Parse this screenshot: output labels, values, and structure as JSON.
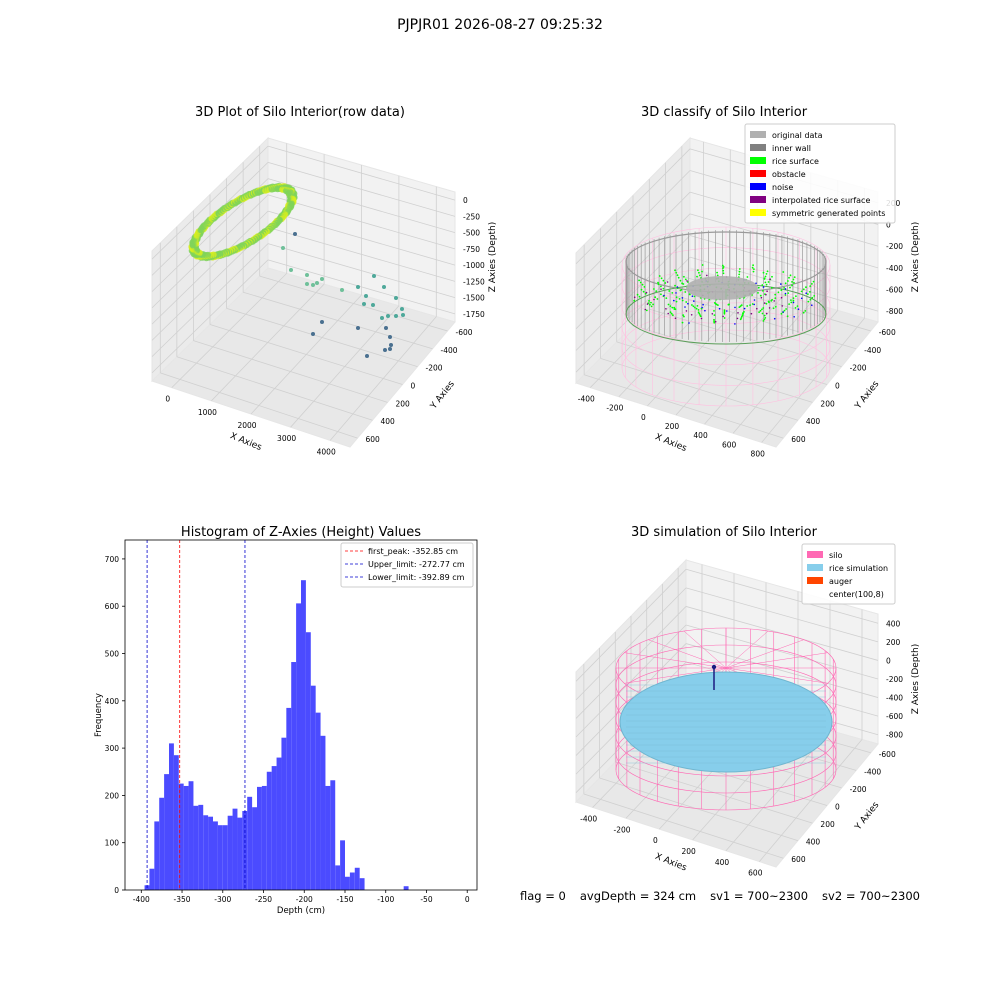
{
  "suptitle": "PJPJR01 2026-08-27 09:25:32",
  "footer": {
    "flag": "flag = 0",
    "avg": "avgDepth = 324 cm",
    "sv1": "sv1 = 700~2300",
    "sv2": "sv2 = 700~2300"
  },
  "colors": {
    "hist_bar": "#4b4bff",
    "peak_line": "#ff0000",
    "limit_line": "#0000cc",
    "silo": "#ff69b4",
    "rice": "#87ceeb",
    "auger": "#ff4500",
    "ring_green": "#7fd35a",
    "ring_yellow": "#d8ef1e",
    "teal": "#4ea89a",
    "grey": "#b0b0b0",
    "rice_surface": "#00ff00"
  },
  "chart_data": [
    {
      "type": "scatter",
      "title": "3D Plot of Silo Interior(row data)",
      "xlabel": "X Axies",
      "ylabel": "Y Axies",
      "zlabel": "Z Axies (Depth)",
      "x_ticks": [
        "0",
        "1000",
        "2000",
        "3000",
        "4000"
      ],
      "y_ticks": [
        "-600",
        "-400",
        "-200",
        "0",
        "200",
        "400",
        "600"
      ],
      "z_ticks": [
        "0",
        "-250",
        "-500",
        "-750",
        "-1000",
        "-1250",
        "-1500",
        "-1750"
      ],
      "grid": true
    },
    {
      "type": "scatter",
      "title": "3D classify of Silo Interior",
      "xlabel": "X Axies",
      "ylabel": "Y Axies",
      "zlabel": "Z Axies (Depth)",
      "x_ticks": [
        "-400",
        "-200",
        "0",
        "200",
        "400",
        "600",
        "800"
      ],
      "y_ticks": [
        "-600",
        "-400",
        "-200",
        "0",
        "200",
        "400",
        "600"
      ],
      "z_ticks": [
        "200",
        "0",
        "-200",
        "-400",
        "-600",
        "-800"
      ],
      "legend_position": "top-right",
      "legend": [
        {
          "label": "original data",
          "color": "#b0b0b0"
        },
        {
          "label": "inner wall",
          "color": "#808080"
        },
        {
          "label": "rice surface",
          "color": "#00ff00"
        },
        {
          "label": "obstacle",
          "color": "#ff0000"
        },
        {
          "label": "noise",
          "color": "#0000ff"
        },
        {
          "label": "interpolated rice surface",
          "color": "#800080"
        },
        {
          "label": "symmetric generated points",
          "color": "#ffff00"
        }
      ],
      "grid": true
    },
    {
      "type": "bar",
      "title": "Histogram of Z-Axies (Height) Values",
      "xlabel": "Depth (cm)",
      "ylabel": "Frequency",
      "xlim": [
        -420,
        12
      ],
      "ylim": [
        0,
        740
      ],
      "x_ticks": [
        -400,
        -350,
        -300,
        -250,
        -200,
        -150,
        -100,
        -50,
        0
      ],
      "y_ticks": [
        0,
        100,
        200,
        300,
        400,
        500,
        600,
        700
      ],
      "bin_width": 6,
      "bins_start": -396,
      "values": [
        10,
        45,
        145,
        195,
        245,
        310,
        285,
        225,
        220,
        230,
        178,
        180,
        158,
        155,
        145,
        137,
        137,
        157,
        172,
        153,
        167,
        197,
        175,
        218,
        220,
        250,
        262,
        280,
        322,
        385,
        482,
        606,
        655,
        545,
        432,
        375,
        326,
        220,
        232,
        52,
        105,
        28,
        37,
        47,
        25,
        0,
        0,
        0,
        0,
        0,
        0,
        0,
        0,
        8
      ],
      "vlines": [
        {
          "label": "first_peak: -352.85 cm",
          "x": -352.85,
          "color": "#ff0000"
        },
        {
          "label": "Upper_limit: -272.77 cm",
          "x": -272.77,
          "color": "#0000cc"
        },
        {
          "label": "Lower_limit: -392.89 cm",
          "x": -392.89,
          "color": "#0000cc"
        }
      ],
      "legend_position": "top-right",
      "grid": false
    },
    {
      "type": "scatter",
      "title": "3D simulation of Silo Interior",
      "xlabel": "X Axies",
      "ylabel": "Y Axies",
      "zlabel": "Z Axies (Depth)",
      "x_ticks": [
        "-400",
        "-200",
        "0",
        "200",
        "400",
        "600"
      ],
      "y_ticks": [
        "-600",
        "-400",
        "-200",
        "0",
        "200",
        "400",
        "600"
      ],
      "z_ticks": [
        "400",
        "200",
        "0",
        "-200",
        "-400",
        "-600",
        "-800"
      ],
      "legend_position": "top-right",
      "legend": [
        {
          "label": "silo",
          "color": "#ff69b4"
        },
        {
          "label": "rice simulation",
          "color": "#87ceeb"
        },
        {
          "label": "auger",
          "color": "#ff4500"
        },
        {
          "label": "center(100,8)",
          "color": ""
        }
      ],
      "grid": true
    }
  ]
}
